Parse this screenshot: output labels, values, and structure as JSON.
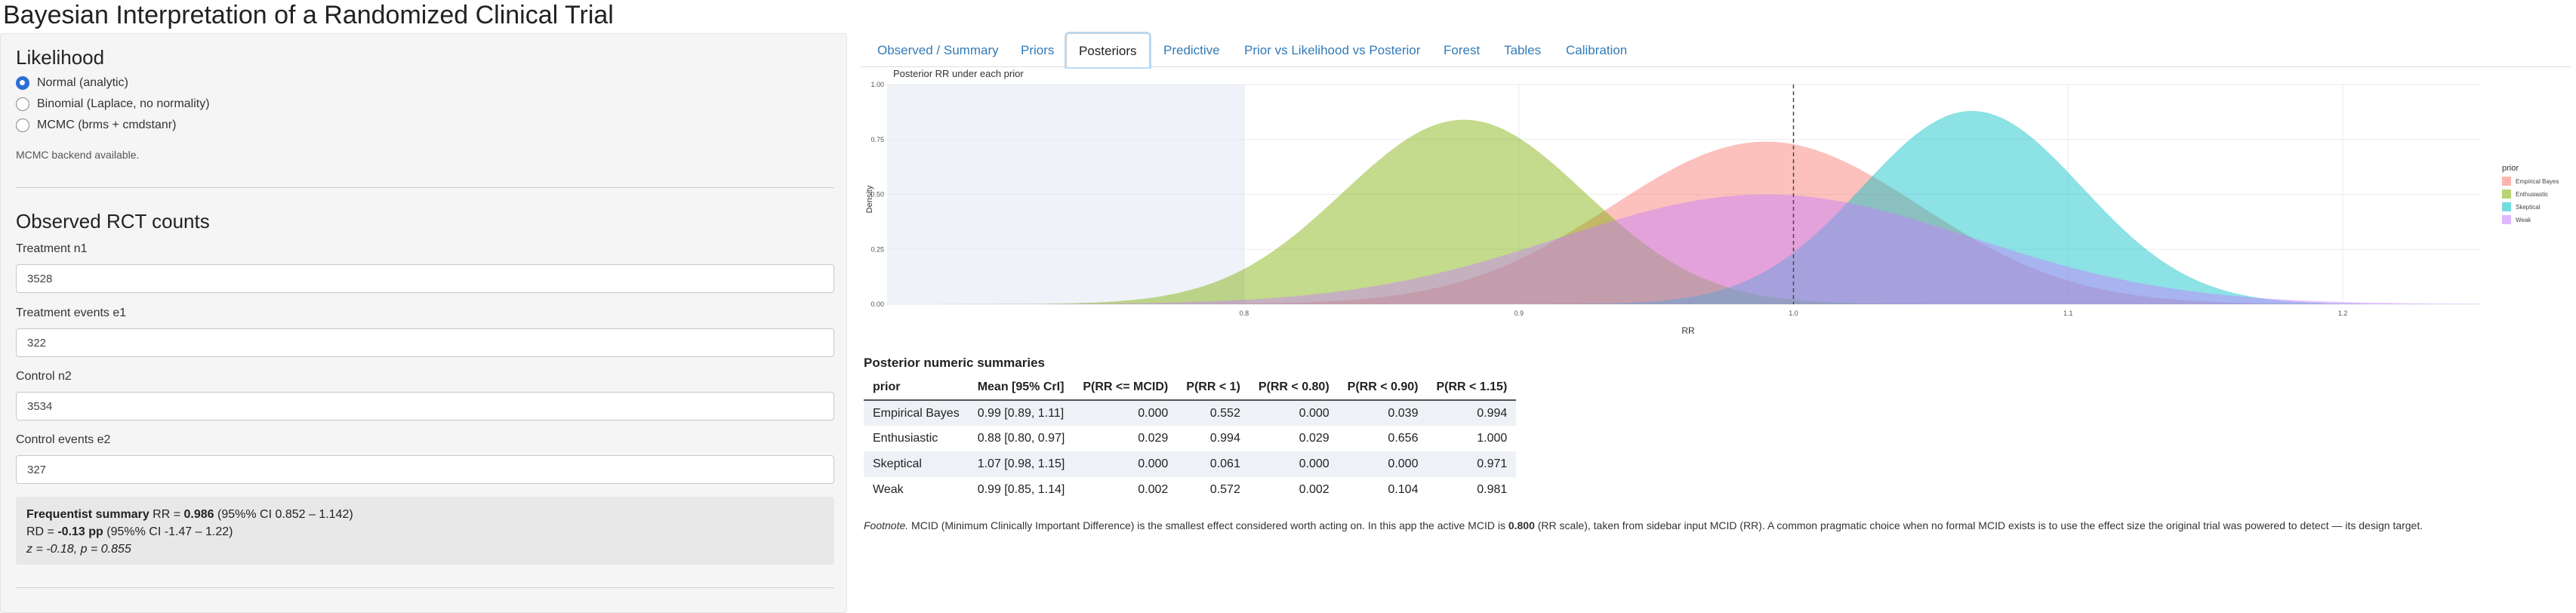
{
  "app": {
    "title": "Bayesian Interpretation of a Randomized Clinical Trial"
  },
  "sidebar": {
    "likelihood_heading": "Likelihood",
    "likelihood_options": [
      {
        "label": "Normal (analytic)",
        "selected": true
      },
      {
        "label": "Binomial (Laplace, no normality)",
        "selected": false
      },
      {
        "label": "MCMC (brms + cmdstanr)",
        "selected": false
      }
    ],
    "mcmc_status": "MCMC backend available.",
    "counts_heading": "Observed RCT counts",
    "fields": [
      {
        "label": "Treatment n1",
        "value": "3528"
      },
      {
        "label": "Treatment events e1",
        "value": "322"
      },
      {
        "label": "Control n2",
        "value": "3534"
      },
      {
        "label": "Control events e2",
        "value": "327"
      }
    ],
    "freq": {
      "bold_label": "Frequentist summary",
      "rr_prefix": "RR = ",
      "rr_value": "0.986",
      "rr_ci": "(95%% CI 0.852 – 1.142)",
      "rd_prefix": "RD = ",
      "rd_value": "-0.13 pp",
      "rd_ci": "(95%% CI -1.47 – 1.22)",
      "z_text": "z = -0.18, p = 0.855"
    }
  },
  "tabs": [
    {
      "label": "Observed / Summary",
      "active": false
    },
    {
      "label": "Priors",
      "active": false
    },
    {
      "label": "Posteriors",
      "active": true
    },
    {
      "label": "Predictive",
      "active": false
    },
    {
      "label": "Prior vs Likelihood vs Posterior",
      "active": false
    },
    {
      "label": "Forest",
      "active": false
    },
    {
      "label": "Tables",
      "active": false
    },
    {
      "label": "Calibration",
      "active": false
    }
  ],
  "chart_data": {
    "type": "area",
    "title": "Posterior RR under each prior",
    "xlabel": "RR",
    "ylabel": "Density",
    "xlim": [
      0.67,
      1.25
    ],
    "ylim": [
      0,
      1.0
    ],
    "x_ticks": [
      "0.8",
      "0.9",
      "1.0",
      "1.1",
      "1.2"
    ],
    "x_tick_values": [
      0.8,
      0.9,
      1.0,
      1.1,
      1.2
    ],
    "y_ticks": [
      "0.00",
      "0.25",
      "0.50",
      "0.75",
      "1.00"
    ],
    "y_tick_values": [
      0.0,
      0.25,
      0.5,
      0.75,
      1.0
    ],
    "mcid_shade_upper": 0.8,
    "reference_line_x": 1.0,
    "grid": true,
    "legend_title": "prior",
    "legend_position": "right",
    "series": [
      {
        "name": "Empirical Bayes",
        "color": "#F8766D",
        "mean": 0.99,
        "sd": 0.056,
        "peak": 0.74
      },
      {
        "name": "Enthusiastic",
        "color": "#7CAE00",
        "mean": 0.88,
        "sd": 0.044,
        "peak": 0.84
      },
      {
        "name": "Skeptical",
        "color": "#00BFC4",
        "mean": 1.065,
        "sd": 0.04,
        "peak": 0.88
      },
      {
        "name": "Weak",
        "color": "#C77CFF",
        "mean": 0.99,
        "sd": 0.075,
        "peak": 0.5
      }
    ]
  },
  "summary_table": {
    "title": "Posterior numeric summaries",
    "headers": [
      "prior",
      "Mean [95% CrI]",
      "P(RR <= MCID)",
      "P(RR < 1)",
      "P(RR < 0.80)",
      "P(RR < 0.90)",
      "P(RR < 1.15)"
    ],
    "rows": [
      [
        "Empirical Bayes",
        "0.99 [0.89, 1.11]",
        "0.000",
        "0.552",
        "0.000",
        "0.039",
        "0.994"
      ],
      [
        "Enthusiastic",
        "0.88 [0.80, 0.97]",
        "0.029",
        "0.994",
        "0.029",
        "0.656",
        "1.000"
      ],
      [
        "Skeptical",
        "1.07 [0.98, 1.15]",
        "0.000",
        "0.061",
        "0.000",
        "0.000",
        "0.971"
      ],
      [
        "Weak",
        "0.99 [0.85, 1.14]",
        "0.002",
        "0.572",
        "0.002",
        "0.104",
        "0.981"
      ]
    ]
  },
  "footnote": {
    "label": "Footnote.",
    "text_a": " MCID (Minimum Clinically Important Difference) is the smallest effect considered worth acting on. In this app the active MCID is ",
    "mcid_value": "0.800",
    "text_b": " (RR scale), taken from sidebar input MCID (RR). A common pragmatic choice when no formal MCID exists is to use the effect size the original trial was powered to detect — its design target."
  }
}
